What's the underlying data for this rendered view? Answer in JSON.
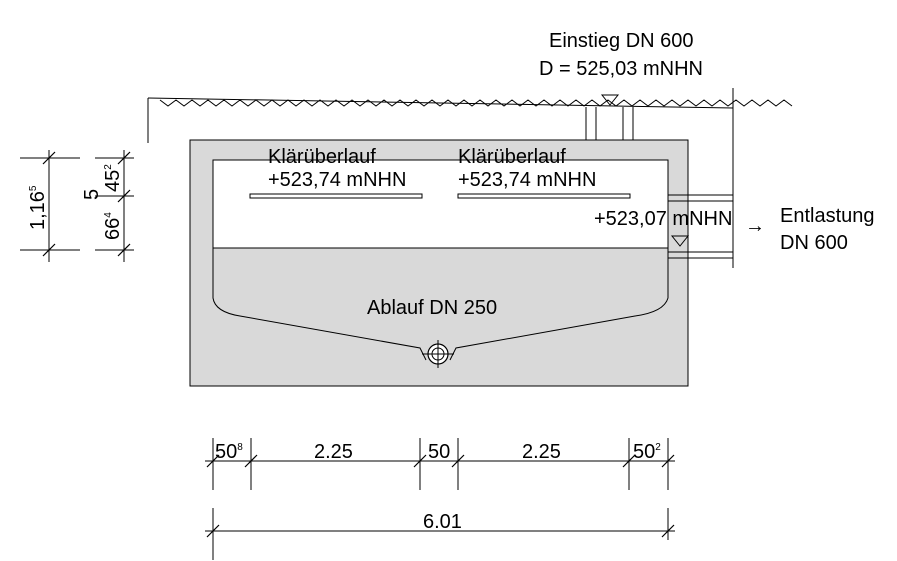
{
  "labels": {
    "inlet_title": "Einstieg DN 600",
    "inlet_level": "D = 525,03 mNHN",
    "overflow_left_title": "Klärüberlauf",
    "overflow_left_level": "+523,74 mNHN",
    "overflow_right_title": "Klärüberlauf",
    "overflow_right_level": "+523,74 mNHN",
    "relief_level": "+523,07 mNHN",
    "relief_arrow": "→",
    "relief_title": "Entlastung",
    "relief_dn": "DN 600",
    "outlet": "Ablauf DN 250"
  },
  "dimensions": {
    "vertical": {
      "total_main": "1,16",
      "total_sup": "5",
      "mid": "5",
      "upper_main": "45",
      "upper_sup": "2",
      "lower_main": "66",
      "lower_sup": "4"
    },
    "horizontal": {
      "seg1_main": "50",
      "seg1_sup": "8",
      "seg2": "2.25",
      "seg3": "50",
      "seg4": "2.25",
      "seg5_main": "50",
      "seg5_sup": "2",
      "total": "6.01"
    }
  },
  "colors": {
    "concrete": "#d9d9d9",
    "line": "#000000",
    "water": "#ffffff"
  }
}
